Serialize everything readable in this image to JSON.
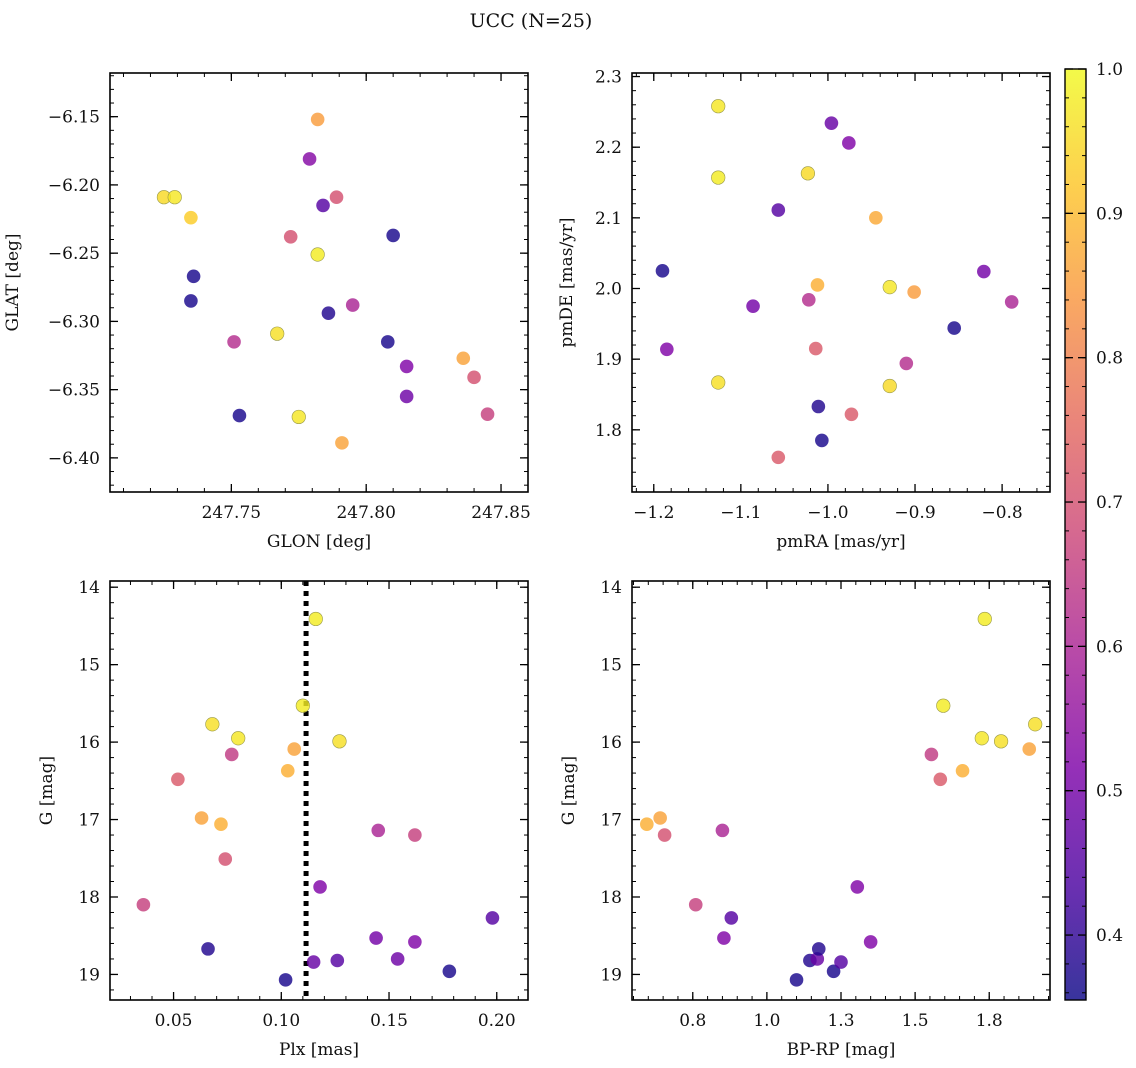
{
  "title": "UCC (N=25)",
  "colorbar": {
    "cmap": "plasma",
    "range": [
      0.355,
      1.0
    ],
    "ticks": [
      0.4,
      0.5,
      0.6,
      0.7,
      0.8,
      0.9,
      1.0
    ]
  },
  "chart_data": [
    {
      "type": "scatter",
      "xlabel": "GLON [deg]",
      "ylabel": "GLAT [deg]",
      "xlim": [
        247.705,
        247.86
      ],
      "ylim": [
        -6.425,
        -6.118
      ],
      "xticks": [
        247.75,
        247.8,
        247.85
      ],
      "yticks": [
        -6.4,
        -6.35,
        -6.3,
        -6.25,
        -6.2,
        -6.15
      ],
      "points": [
        {
          "x": 247.725,
          "y": -6.209,
          "c": 0.95
        },
        {
          "x": 247.729,
          "y": -6.209,
          "c": 0.97
        },
        {
          "x": 247.735,
          "y": -6.224,
          "c": 0.93
        },
        {
          "x": 247.736,
          "y": -6.267,
          "c": 0.37
        },
        {
          "x": 247.735,
          "y": -6.285,
          "c": 0.37
        },
        {
          "x": 247.751,
          "y": -6.315,
          "c": 0.62
        },
        {
          "x": 247.753,
          "y": -6.369,
          "c": 0.37
        },
        {
          "x": 247.767,
          "y": -6.309,
          "c": 0.96
        },
        {
          "x": 247.772,
          "y": -6.238,
          "c": 0.7
        },
        {
          "x": 247.775,
          "y": -6.37,
          "c": 0.97
        },
        {
          "x": 247.779,
          "y": -6.181,
          "c": 0.53
        },
        {
          "x": 247.782,
          "y": -6.152,
          "c": 0.85
        },
        {
          "x": 247.782,
          "y": -6.251,
          "c": 0.98
        },
        {
          "x": 247.784,
          "y": -6.215,
          "c": 0.45
        },
        {
          "x": 247.786,
          "y": -6.294,
          "c": 0.38
        },
        {
          "x": 247.789,
          "y": -6.209,
          "c": 0.7
        },
        {
          "x": 247.791,
          "y": -6.389,
          "c": 0.86
        },
        {
          "x": 247.795,
          "y": -6.288,
          "c": 0.6
        },
        {
          "x": 247.808,
          "y": -6.315,
          "c": 0.37
        },
        {
          "x": 247.81,
          "y": -6.237,
          "c": 0.37
        },
        {
          "x": 247.815,
          "y": -6.333,
          "c": 0.52
        },
        {
          "x": 247.815,
          "y": -6.355,
          "c": 0.49
        },
        {
          "x": 247.836,
          "y": -6.327,
          "c": 0.86
        },
        {
          "x": 247.84,
          "y": -6.341,
          "c": 0.7
        },
        {
          "x": 247.845,
          "y": -6.368,
          "c": 0.66
        }
      ]
    },
    {
      "type": "scatter",
      "xlabel": "pmRA [mas/yr]",
      "ylabel": "pmDE [mas/yr]",
      "xlim": [
        -1.225,
        -0.745
      ],
      "ylim": [
        1.712,
        2.305
      ],
      "xticks": [
        -1.2,
        -1.1,
        -1.0,
        -0.9,
        -0.8
      ],
      "yticks": [
        1.8,
        1.9,
        2.0,
        2.1,
        2.2,
        2.3
      ],
      "points": [
        {
          "x": -1.19,
          "y": 2.025,
          "c": 0.37
        },
        {
          "x": -1.185,
          "y": 1.914,
          "c": 0.52
        },
        {
          "x": -1.126,
          "y": 2.258,
          "c": 0.97
        },
        {
          "x": -1.126,
          "y": 2.157,
          "c": 0.98
        },
        {
          "x": -1.126,
          "y": 1.867,
          "c": 0.96
        },
        {
          "x": -1.086,
          "y": 1.975,
          "c": 0.5
        },
        {
          "x": -1.057,
          "y": 2.111,
          "c": 0.45
        },
        {
          "x": -1.057,
          "y": 1.761,
          "c": 0.72
        },
        {
          "x": -1.023,
          "y": 2.163,
          "c": 0.95
        },
        {
          "x": -1.022,
          "y": 1.984,
          "c": 0.62
        },
        {
          "x": -1.014,
          "y": 1.915,
          "c": 0.72
        },
        {
          "x": -1.012,
          "y": 2.005,
          "c": 0.88
        },
        {
          "x": -1.011,
          "y": 1.833,
          "c": 0.38
        },
        {
          "x": -1.007,
          "y": 1.785,
          "c": 0.37
        },
        {
          "x": -0.996,
          "y": 2.234,
          "c": 0.48
        },
        {
          "x": -0.976,
          "y": 2.206,
          "c": 0.52
        },
        {
          "x": -0.973,
          "y": 1.822,
          "c": 0.72
        },
        {
          "x": -0.945,
          "y": 2.1,
          "c": 0.87
        },
        {
          "x": -0.929,
          "y": 2.002,
          "c": 0.97
        },
        {
          "x": -0.929,
          "y": 1.862,
          "c": 0.95
        },
        {
          "x": -0.91,
          "y": 1.894,
          "c": 0.62
        },
        {
          "x": -0.901,
          "y": 1.995,
          "c": 0.85
        },
        {
          "x": -0.855,
          "y": 1.944,
          "c": 0.37
        },
        {
          "x": -0.821,
          "y": 2.024,
          "c": 0.5
        },
        {
          "x": -0.789,
          "y": 1.981,
          "c": 0.6
        }
      ]
    },
    {
      "type": "scatter",
      "xlabel": "Plx [mas]",
      "ylabel": "G [mag]",
      "xlim": [
        0.0205,
        0.2145
      ],
      "ylim": [
        19.33,
        13.92
      ],
      "xticks": [
        0.05,
        0.1,
        0.15,
        0.2
      ],
      "yticks": [
        14,
        15,
        16,
        17,
        18,
        19
      ],
      "vline": 0.1115,
      "points": [
        {
          "x": 0.036,
          "y": 18.1,
          "c": 0.66
        },
        {
          "x": 0.052,
          "y": 16.48,
          "c": 0.72
        },
        {
          "x": 0.063,
          "y": 16.98,
          "c": 0.86
        },
        {
          "x": 0.066,
          "y": 18.67,
          "c": 0.38
        },
        {
          "x": 0.068,
          "y": 15.77,
          "c": 0.96
        },
        {
          "x": 0.072,
          "y": 17.06,
          "c": 0.88
        },
        {
          "x": 0.074,
          "y": 17.51,
          "c": 0.7
        },
        {
          "x": 0.077,
          "y": 16.16,
          "c": 0.65
        },
        {
          "x": 0.08,
          "y": 15.95,
          "c": 0.97
        },
        {
          "x": 0.102,
          "y": 19.07,
          "c": 0.37
        },
        {
          "x": 0.103,
          "y": 16.37,
          "c": 0.88
        },
        {
          "x": 0.106,
          "y": 16.09,
          "c": 0.86
        },
        {
          "x": 0.11,
          "y": 15.53,
          "c": 0.98
        },
        {
          "x": 0.115,
          "y": 18.84,
          "c": 0.48
        },
        {
          "x": 0.116,
          "y": 14.41,
          "c": 0.98
        },
        {
          "x": 0.118,
          "y": 17.87,
          "c": 0.52
        },
        {
          "x": 0.126,
          "y": 18.82,
          "c": 0.45
        },
        {
          "x": 0.127,
          "y": 15.99,
          "c": 0.96
        },
        {
          "x": 0.144,
          "y": 18.53,
          "c": 0.5
        },
        {
          "x": 0.145,
          "y": 17.14,
          "c": 0.6
        },
        {
          "x": 0.154,
          "y": 18.8,
          "c": 0.49
        },
        {
          "x": 0.162,
          "y": 18.58,
          "c": 0.52
        },
        {
          "x": 0.162,
          "y": 17.2,
          "c": 0.66
        },
        {
          "x": 0.178,
          "y": 18.96,
          "c": 0.37
        },
        {
          "x": 0.198,
          "y": 18.27,
          "c": 0.45
        }
      ]
    },
    {
      "type": "scatter",
      "xlabel": "BP-RP [mag]",
      "ylabel": "G [mag]",
      "xlim": [
        0.545,
        1.955
      ],
      "ylim": [
        19.33,
        13.92
      ],
      "xticks": [
        0.75,
        1.0,
        1.25,
        1.5,
        1.75
      ],
      "yticks": [
        14,
        15,
        16,
        17,
        18,
        19
      ],
      "points": [
        {
          "x": 0.595,
          "y": 17.06,
          "c": 0.88
        },
        {
          "x": 0.64,
          "y": 16.98,
          "c": 0.86
        },
        {
          "x": 0.655,
          "y": 17.2,
          "c": 0.7
        },
        {
          "x": 0.76,
          "y": 18.1,
          "c": 0.66
        },
        {
          "x": 0.85,
          "y": 17.14,
          "c": 0.6
        },
        {
          "x": 0.855,
          "y": 18.53,
          "c": 0.52
        },
        {
          "x": 0.88,
          "y": 18.27,
          "c": 0.45
        },
        {
          "x": 1.1,
          "y": 19.07,
          "c": 0.37
        },
        {
          "x": 1.145,
          "y": 18.82,
          "c": 0.38
        },
        {
          "x": 1.17,
          "y": 18.8,
          "c": 0.48
        },
        {
          "x": 1.175,
          "y": 18.67,
          "c": 0.38
        },
        {
          "x": 1.225,
          "y": 18.96,
          "c": 0.37
        },
        {
          "x": 1.25,
          "y": 18.84,
          "c": 0.45
        },
        {
          "x": 1.305,
          "y": 17.87,
          "c": 0.52
        },
        {
          "x": 1.35,
          "y": 18.58,
          "c": 0.52
        },
        {
          "x": 1.555,
          "y": 16.16,
          "c": 0.65
        },
        {
          "x": 1.585,
          "y": 16.48,
          "c": 0.72
        },
        {
          "x": 1.595,
          "y": 15.53,
          "c": 0.98
        },
        {
          "x": 1.66,
          "y": 16.37,
          "c": 0.88
        },
        {
          "x": 1.725,
          "y": 15.95,
          "c": 0.97
        },
        {
          "x": 1.735,
          "y": 14.41,
          "c": 0.98
        },
        {
          "x": 1.79,
          "y": 15.99,
          "c": 0.96
        },
        {
          "x": 1.885,
          "y": 16.09,
          "c": 0.86
        },
        {
          "x": 1.905,
          "y": 15.77,
          "c": 0.96
        }
      ]
    }
  ]
}
